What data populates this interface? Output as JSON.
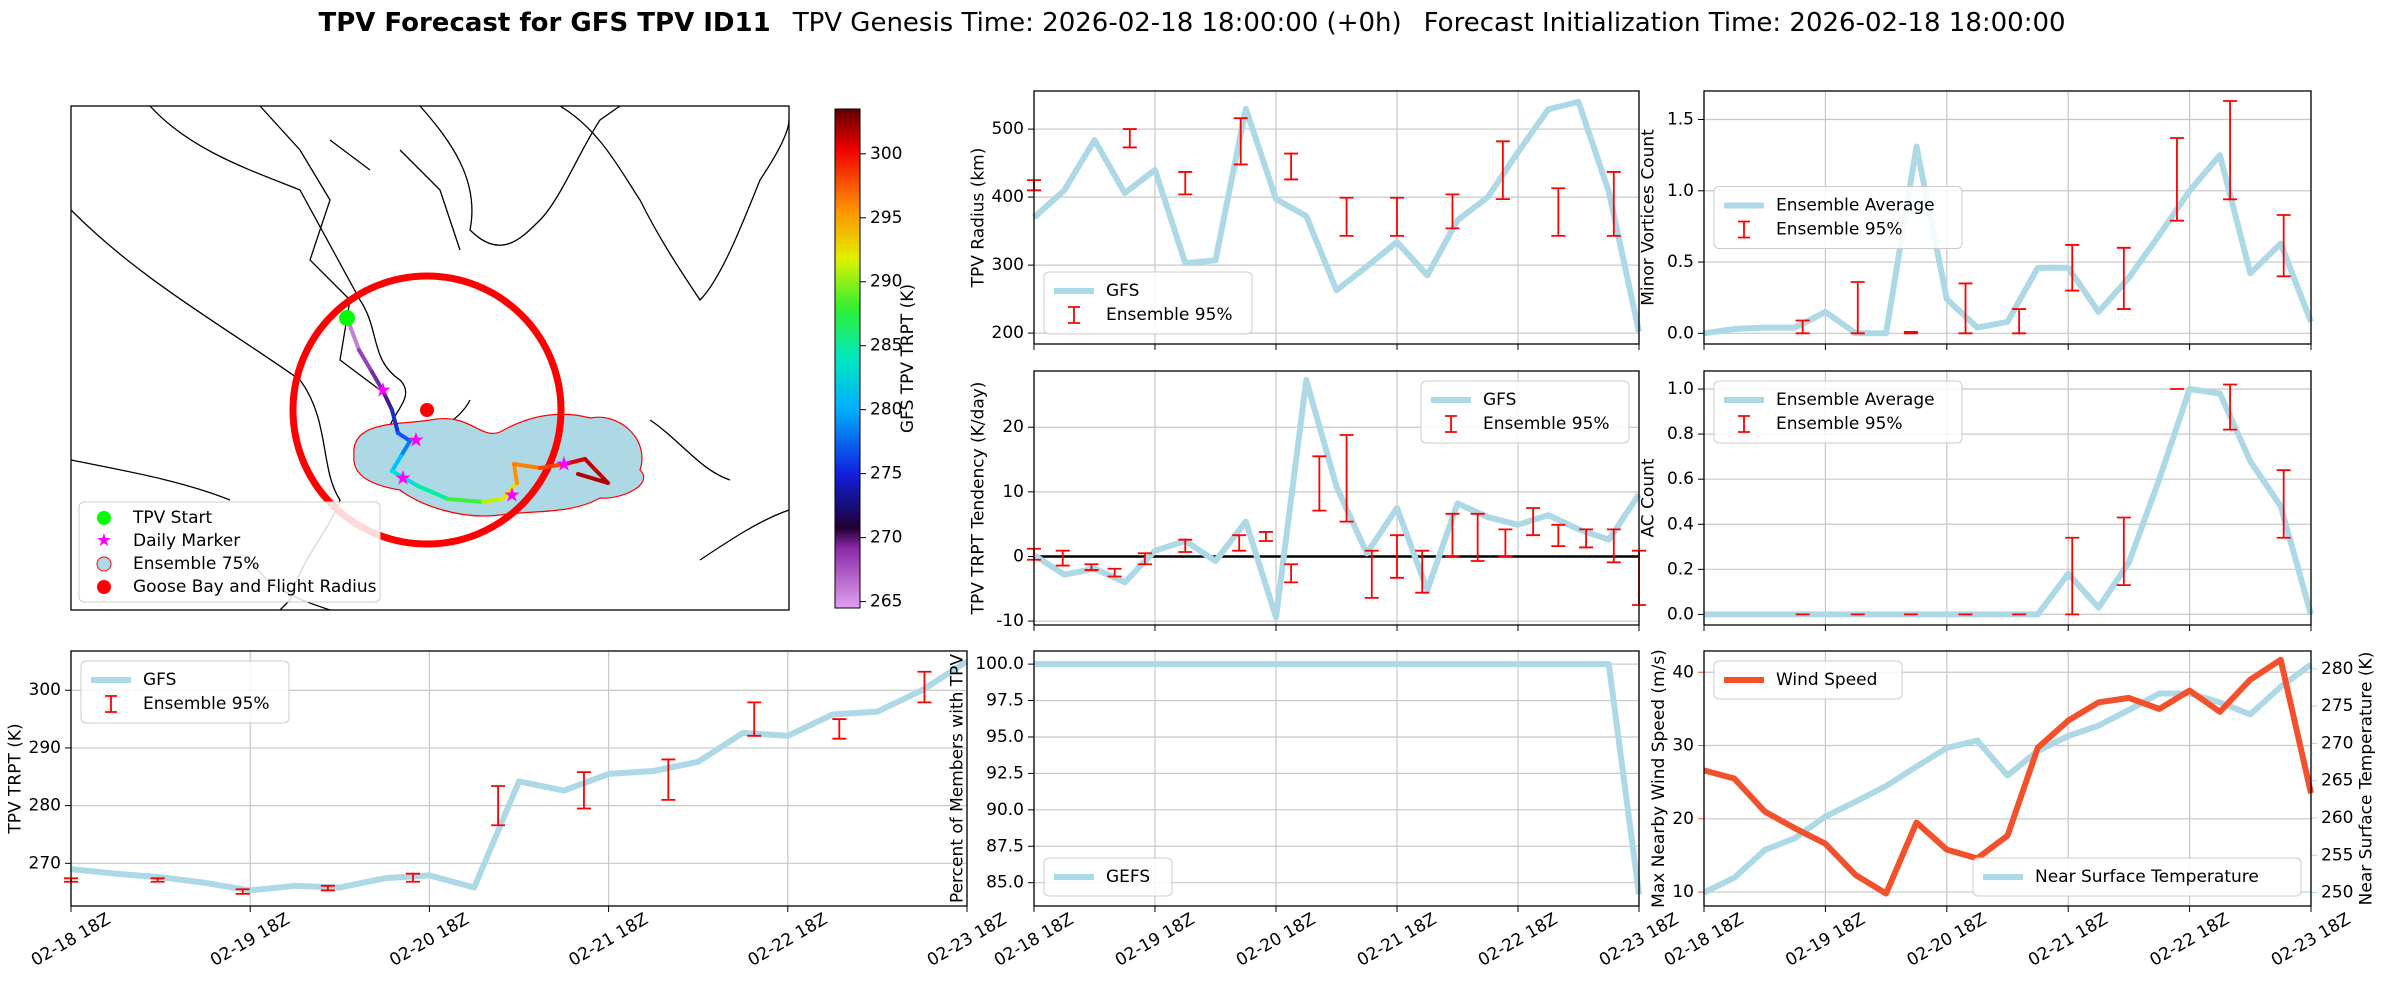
{
  "title": "TPV Forecast for GFS TPV ID11",
  "genesis": "TPV Genesis Time: 2026-02-18 18:00:00 (+0h)",
  "initialization": "Forecast Initialization Time: 2026-02-18 18:00:00",
  "chart_data": [
    {
      "type": "map",
      "legend": [
        "TPV Start",
        "Daily Marker",
        "Ensemble 75%",
        "Goose Bay and Flight Radius"
      ],
      "colorbar": {
        "label": "GFS TPV TRPT (K)",
        "lim": [
          264.5,
          303.5
        ],
        "ticks": [
          265,
          270,
          275,
          280,
          285,
          290,
          295,
          300
        ]
      }
    },
    {
      "type": "line",
      "ylabel": "TPV TRPT (K)",
      "xlim": [
        0,
        120
      ],
      "xticks": [
        {
          "value": 0,
          "label": "02-18 18Z"
        },
        {
          "value": 24,
          "label": "02-19 18Z"
        },
        {
          "value": 48,
          "label": "02-20 18Z"
        },
        {
          "value": 72,
          "label": "02-21 18Z"
        },
        {
          "value": 96,
          "label": "02-22 18Z"
        },
        {
          "value": 120,
          "label": "02-23 18Z"
        }
      ],
      "ylim": [
        262.6,
        306.8
      ],
      "yticks": [
        270,
        280,
        290,
        300
      ],
      "grid": true,
      "legend": "upper left",
      "x": [
        0,
        6,
        12,
        18,
        24,
        30,
        36,
        42,
        48,
        54,
        60,
        66,
        72,
        78,
        84,
        90,
        96,
        102,
        108,
        114,
        120
      ],
      "series": [
        {
          "name": "GFS",
          "color": "#add8e6",
          "values": [
            269,
            268.2,
            267.6,
            266.6,
            265.3,
            266.1,
            265.8,
            267.4,
            267.9,
            265.8,
            284.2,
            282.6,
            285.5,
            286,
            287.6,
            292.6,
            292.1,
            295.8,
            296.3,
            300,
            305
          ]
        }
      ],
      "errorbars": {
        "name": "Ensemble 95%",
        "color": "#ff0000",
        "x": [
          0,
          11.6,
          23,
          34.4,
          45.8,
          57.2,
          68.7,
          80,
          91.5,
          102.9,
          114.3
        ],
        "low": [
          266.8,
          266.8,
          264.7,
          265.3,
          266.8,
          276.6,
          279.5,
          281,
          292.1,
          291.6,
          297.9
        ],
        "high": [
          267.4,
          267.4,
          265.5,
          266.1,
          268.2,
          283.4,
          285.8,
          288,
          297.9,
          295,
          303.2
        ]
      }
    },
    {
      "type": "line",
      "ylabel": "TPV Radius (km)",
      "xlim": [
        0,
        120
      ],
      "xgrid": [
        0,
        24,
        48,
        72,
        96,
        120
      ],
      "ylim": [
        184,
        556
      ],
      "yticks": [
        200,
        300,
        400,
        500
      ],
      "grid": true,
      "legend": "lower left",
      "x": [
        0,
        6,
        12,
        18,
        24,
        30,
        36,
        42,
        48,
        54,
        60,
        66,
        72,
        78,
        84,
        90,
        96,
        102,
        108,
        114,
        120
      ],
      "series": [
        {
          "name": "GFS",
          "color": "#add8e6",
          "values": [
            370,
            410,
            484,
            406,
            440,
            303,
            307,
            530,
            397,
            372,
            263,
            298,
            334,
            285,
            366,
            400,
            466,
            529,
            540,
            408,
            202
          ]
        }
      ],
      "errorbars": {
        "name": "Ensemble 95%",
        "color": "#ff0000",
        "x": [
          0,
          19,
          30,
          41,
          51,
          62,
          72,
          83,
          93,
          104,
          115
        ],
        "low": [
          410,
          473,
          404,
          448,
          426,
          343,
          343,
          354,
          397,
          343,
          343
        ],
        "high": [
          425,
          500,
          437,
          516,
          464,
          399,
          399,
          404,
          482,
          413,
          437
        ]
      }
    },
    {
      "type": "line",
      "ylabel": "TPV TRPT Tendency (K/day)",
      "xlim": [
        0,
        120
      ],
      "xgrid": [
        0,
        24,
        48,
        72,
        96,
        120
      ],
      "ylim": [
        -10.6,
        28.7
      ],
      "yticks": [
        -10,
        0,
        10,
        20
      ],
      "grid": true,
      "legend": "upper right",
      "hline": 0,
      "x": [
        0,
        6,
        12,
        18,
        24,
        30,
        36,
        42,
        48,
        54,
        60,
        66,
        72,
        78,
        84,
        90,
        96,
        102,
        108,
        114,
        120
      ],
      "series": [
        {
          "name": "GFS",
          "color": "#add8e6",
          "values": [
            0.2,
            -2.8,
            -1.9,
            -4,
            0.9,
            2.4,
            -0.7,
            5.4,
            -9.4,
            27.3,
            10.8,
            0.5,
            7.5,
            -5.2,
            8.2,
            6.1,
            4.9,
            6.4,
            4.2,
            2.6,
            9.6
          ]
        }
      ],
      "errorbars": {
        "name": "Ensemble 95%",
        "color": "#ff0000",
        "x": [
          0,
          5.7,
          11.4,
          16,
          22,
          30,
          40.7,
          46,
          51,
          56.6,
          62,
          67,
          72,
          77,
          83,
          88,
          93.5,
          99,
          104,
          109.5,
          115,
          120
        ],
        "low": [
          -0.5,
          -1.4,
          -2.1,
          -3.1,
          -1.2,
          0.7,
          0.9,
          2.4,
          -4,
          7.1,
          5.4,
          -6.4,
          -3.3,
          -5.6,
          0,
          -0.7,
          0,
          3.3,
          1.6,
          1.4,
          -0.9,
          -7.5
        ],
        "high": [
          1.2,
          0.9,
          -1.2,
          -1.9,
          0.5,
          2.6,
          3.3,
          3.8,
          -1.2,
          15.5,
          18.8,
          0.9,
          3.3,
          0.9,
          6.6,
          6.6,
          4.2,
          7.5,
          4.9,
          4.2,
          4.2,
          0.9
        ]
      }
    },
    {
      "type": "line",
      "ylabel": "Percent of Members with TPV",
      "xlim": [
        0,
        120
      ],
      "xticks": [
        {
          "value": 0,
          "label": "02-18 18Z"
        },
        {
          "value": 24,
          "label": "02-19 18Z"
        },
        {
          "value": 48,
          "label": "02-20 18Z"
        },
        {
          "value": 72,
          "label": "02-21 18Z"
        },
        {
          "value": 96,
          "label": "02-22 18Z"
        },
        {
          "value": 120,
          "label": "02-23 18Z"
        }
      ],
      "ylim": [
        83.4,
        100.9
      ],
      "yticks": [
        {
          "value": 85,
          "label": "85.0"
        },
        87.5,
        {
          "value": 90,
          "label": "90.0"
        },
        92.5,
        {
          "value": 95,
          "label": "95.0"
        },
        97.5,
        {
          "value": 100,
          "label": "100.0"
        }
      ],
      "grid": true,
      "legend": "lower left",
      "x": [
        0,
        6,
        12,
        18,
        24,
        30,
        36,
        42,
        48,
        54,
        60,
        66,
        72,
        78,
        84,
        90,
        96,
        102,
        108,
        114,
        120
      ],
      "series": [
        {
          "name": "GEFS",
          "color": "#add8e6",
          "values": [
            100,
            100,
            100,
            100,
            100,
            100,
            100,
            100,
            100,
            100,
            100,
            100,
            100,
            100,
            100,
            100,
            100,
            100,
            100,
            100,
            84.2
          ]
        }
      ]
    },
    {
      "type": "line",
      "ylabel": "Minor Vortices Count",
      "xlim": [
        0,
        120
      ],
      "xgrid": [
        0,
        24,
        48,
        72,
        96,
        120
      ],
      "ylim": [
        -0.075,
        1.7
      ],
      "yticks": [
        {
          "value": 0,
          "label": "0.0"
        },
        0.5,
        {
          "value": 1,
          "label": "1.0"
        },
        1.5
      ],
      "grid": true,
      "legend": "center left",
      "x": [
        0,
        6,
        12,
        18,
        24,
        30,
        36,
        42,
        48,
        54,
        60,
        66,
        72,
        78,
        84,
        90,
        96,
        102,
        108,
        114,
        120
      ],
      "series": [
        {
          "name": "Ensemble Average",
          "color": "#add8e6",
          "values": [
            0,
            0.03,
            0.04,
            0.04,
            0.15,
            0,
            0,
            1.31,
            0.24,
            0.04,
            0.08,
            0.46,
            0.46,
            0.15,
            0.39,
            0.69,
            1.0,
            1.25,
            0.42,
            0.63,
            0.08
          ]
        }
      ],
      "errorbars": {
        "name": "Ensemble 95%",
        "color": "#ff0000",
        "x": [
          19.5,
          30.4,
          40.9,
          51.7,
          62.3,
          72.8,
          83,
          93.5,
          104,
          114.6
        ],
        "low": [
          0,
          0,
          0,
          0,
          0,
          0.3,
          0.17,
          0.79,
          0.94,
          0.4
        ],
        "high": [
          0.09,
          0.36,
          0.01,
          0.35,
          0.17,
          0.62,
          0.6,
          1.37,
          1.63,
          0.83
        ]
      }
    },
    {
      "type": "line",
      "ylabel": "AC Count",
      "xlim": [
        0,
        120
      ],
      "xgrid": [
        0,
        24,
        48,
        72,
        96,
        120
      ],
      "ylim": [
        -0.047,
        1.08
      ],
      "yticks": [
        {
          "value": 0,
          "label": "0.0"
        },
        0.2,
        0.4,
        0.6,
        0.8,
        {
          "value": 1,
          "label": "1.0"
        }
      ],
      "grid": true,
      "legend": "upper left",
      "x": [
        0,
        6,
        12,
        18,
        24,
        30,
        36,
        42,
        48,
        54,
        60,
        66,
        72,
        78,
        84,
        90,
        96,
        102,
        108,
        114,
        120
      ],
      "series": [
        {
          "name": "Ensemble Average",
          "color": "#add8e6",
          "values": [
            0,
            0,
            0,
            0,
            0,
            0,
            0,
            0,
            0,
            0,
            0,
            0,
            0.18,
            0.03,
            0.23,
            0.6,
            1.0,
            0.98,
            0.68,
            0.48,
            0
          ]
        }
      ],
      "errorbars": {
        "name": "Ensemble 95%",
        "color": "#ff0000",
        "x": [
          19.5,
          30.4,
          40.9,
          51.7,
          62.3,
          72.8,
          83,
          93.5,
          104,
          114.6
        ],
        "low": [
          0,
          0,
          0,
          0,
          0,
          0,
          0.13,
          1.0,
          0.82,
          0.34
        ],
        "high": [
          0,
          0,
          0,
          0,
          0,
          0.34,
          0.43,
          1.0,
          1.02,
          0.64
        ]
      }
    },
    {
      "type": "line",
      "ylabel": "Max Nearby Wind Speed (m/s)",
      "y2label": "Near Surface Temperature (K)",
      "xlim": [
        0,
        120
      ],
      "xticks": [
        {
          "value": 0,
          "label": "02-18 18Z"
        },
        {
          "value": 24,
          "label": "02-19 18Z"
        },
        {
          "value": 48,
          "label": "02-20 18Z"
        },
        {
          "value": 72,
          "label": "02-21 18Z"
        },
        {
          "value": 96,
          "label": "02-22 18Z"
        },
        {
          "value": 120,
          "label": "02-23 18Z"
        }
      ],
      "ylim": [
        8.1,
        42.9
      ],
      "yticks": [
        10,
        20,
        30,
        40
      ],
      "y2lim": [
        248.2,
        282.4
      ],
      "y2ticks": [
        250,
        255,
        260,
        265,
        270,
        275,
        280
      ],
      "grid": true,
      "legend": "upper left",
      "legend2": "lower right",
      "x": [
        0,
        6,
        12,
        18,
        24,
        30,
        36,
        42,
        48,
        54,
        60,
        66,
        72,
        78,
        84,
        90,
        96,
        102,
        108,
        114,
        120
      ],
      "series": [
        {
          "name": "Wind Speed",
          "color": "#f4502c",
          "values": [
            26.6,
            25.5,
            21,
            18.7,
            16.6,
            12.3,
            9.8,
            19.5,
            15.8,
            14.6,
            17.7,
            29.7,
            33.4,
            35.9,
            36.5,
            35,
            37.5,
            34.6,
            39,
            41.7,
            23.5
          ]
        },
        {
          "name": "Near Surface Temperature",
          "color": "#add8e6",
          "axis": "y2",
          "values": [
            250,
            252,
            255.7,
            257.3,
            260.2,
            262.2,
            264.3,
            266.9,
            269.4,
            270.4,
            265.7,
            269,
            271,
            272.4,
            274.5,
            276.7,
            276.7,
            275.5,
            273.9,
            277.6,
            280.6
          ]
        }
      ]
    }
  ]
}
